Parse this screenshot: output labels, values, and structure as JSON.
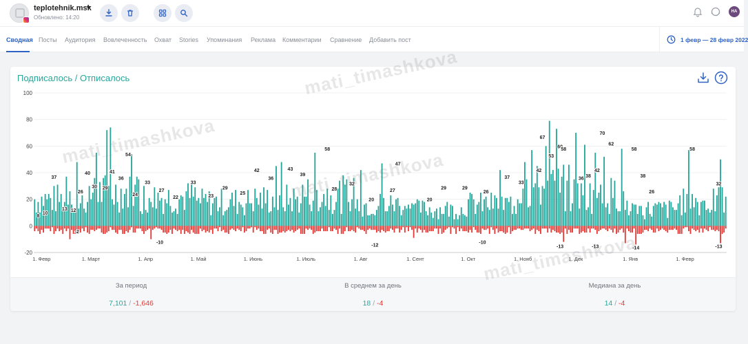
{
  "header": {
    "account_name": "teplotehnik.msk",
    "updated": "Обновлено: 14:20",
    "user_initials": "НА"
  },
  "tabs": [
    {
      "label": "Сводная",
      "active": true
    },
    {
      "label": "Посты"
    },
    {
      "label": "Аудитория"
    },
    {
      "label": "Вовлеченность"
    },
    {
      "label": "Охват"
    },
    {
      "label": "Stories"
    },
    {
      "label": "Упоминания"
    },
    {
      "label": "Реклама"
    },
    {
      "label": "Комментарии"
    },
    {
      "label": "Сравнение"
    },
    {
      "label": "Добавить пост"
    }
  ],
  "date_range": "1 февр — 28 февр 2022",
  "card": {
    "title": "Подписалось / Отписалось"
  },
  "stats": [
    {
      "label": "За период",
      "positive": "7,101",
      "negative": "-1,646"
    },
    {
      "label": "В среднем за день",
      "positive": "18",
      "negative": "-4"
    },
    {
      "label": "Медиана за день",
      "positive": "14",
      "negative": "-4"
    }
  ],
  "watermark": "mati_timashkova",
  "colors": {
    "accent": "#2f62c4",
    "subscribed": "#26a69a",
    "unsubscribed": "#e53935"
  },
  "chart_data": {
    "type": "bar",
    "title": "Подписалось / Отписалось",
    "ylim": [
      -20,
      100
    ],
    "yticks": [
      -20,
      0,
      20,
      40,
      60,
      80,
      100
    ],
    "x_range": [
      "2021-02-01",
      "2022-02-28"
    ],
    "month_ticks": [
      {
        "label": "1. Февр",
        "day": 0
      },
      {
        "label": "1. Март",
        "day": 28
      },
      {
        "label": "1. Апр",
        "day": 59
      },
      {
        "label": "1. Май",
        "day": 89
      },
      {
        "label": "1. Июнь",
        "day": 120
      },
      {
        "label": "1. Июль",
        "day": 150
      },
      {
        "label": "1. Авг",
        "day": 181
      },
      {
        "label": "1. Сент",
        "day": 212
      },
      {
        "label": "1. Окт",
        "day": 242
      },
      {
        "label": "1. Нояб",
        "day": 273
      },
      {
        "label": "1. Дек",
        "day": 303
      },
      {
        "label": "1. Янв",
        "day": 334
      },
      {
        "label": "1. Февр",
        "day": 365
      }
    ],
    "series": [
      {
        "color": "#26a69a",
        "monthly_typical": [
          22,
          28,
          24,
          20,
          22,
          26,
          18,
          14,
          18,
          32,
          26,
          14,
          20
        ],
        "peaks": [
          {
            "day": 18,
            "value": 37
          },
          {
            "day": 24,
            "value": 48
          },
          {
            "day": 35,
            "value": 55
          },
          {
            "day": 41,
            "value": 72
          },
          {
            "day": 43,
            "value": 74
          },
          {
            "day": 55,
            "value": 54
          },
          {
            "day": 137,
            "value": 45
          },
          {
            "day": 140,
            "value": 48
          },
          {
            "day": 159,
            "value": 55
          },
          {
            "day": 185,
            "value": 42
          },
          {
            "day": 197,
            "value": 47
          },
          {
            "day": 264,
            "value": 42
          },
          {
            "day": 278,
            "value": 48
          },
          {
            "day": 282,
            "value": 57
          },
          {
            "day": 290,
            "value": 60
          },
          {
            "day": 292,
            "value": 79
          },
          {
            "day": 296,
            "value": 73
          },
          {
            "day": 307,
            "value": 70
          },
          {
            "day": 312,
            "value": 61
          },
          {
            "day": 318,
            "value": 55
          },
          {
            "day": 323,
            "value": 52
          },
          {
            "day": 333,
            "value": 58
          },
          {
            "day": 371,
            "value": 57
          },
          {
            "day": 389,
            "value": 50
          }
        ]
      },
      {
        "color": "#e53935",
        "typical": -4,
        "troughs": [
          {
            "day": 20,
            "value": -10
          },
          {
            "day": 66,
            "value": -10
          },
          {
            "day": 215,
            "value": -9
          },
          {
            "day": 300,
            "value": -12
          },
          {
            "day": 335,
            "value": -13
          },
          {
            "day": 341,
            "value": -14
          },
          {
            "day": 389,
            "value": -13
          }
        ]
      }
    ],
    "bar_labels": [
      {
        "day": 2,
        "value": 8,
        "text": "8"
      },
      {
        "day": 6,
        "value": 10,
        "text": "10"
      },
      {
        "day": 11,
        "value": 37,
        "text": "37"
      },
      {
        "day": 17,
        "value": 13,
        "text": "13"
      },
      {
        "day": 22,
        "value": 12,
        "text": "12"
      },
      {
        "day": 26,
        "value": 26,
        "text": "26"
      },
      {
        "day": 30,
        "value": 40,
        "text": "40"
      },
      {
        "day": 34,
        "value": 30,
        "text": "30"
      },
      {
        "day": 40,
        "value": 29,
        "text": "29"
      },
      {
        "day": 44,
        "value": 41,
        "text": "41"
      },
      {
        "day": 49,
        "value": 36,
        "text": "36"
      },
      {
        "day": 53,
        "value": 54,
        "text": "54"
      },
      {
        "day": 57,
        "value": 24,
        "text": "24"
      },
      {
        "day": 64,
        "value": 33,
        "text": "33"
      },
      {
        "day": 72,
        "value": 27,
        "text": "27"
      },
      {
        "day": 80,
        "value": 22,
        "text": "22"
      },
      {
        "day": 90,
        "value": 33,
        "text": "33"
      },
      {
        "day": 100,
        "value": 23,
        "text": "23"
      },
      {
        "day": 108,
        "value": 29,
        "text": "29"
      },
      {
        "day": 118,
        "value": 25,
        "text": "25"
      },
      {
        "day": 126,
        "value": 42,
        "text": "42"
      },
      {
        "day": 134,
        "value": 36,
        "text": "36"
      },
      {
        "day": 145,
        "value": 43,
        "text": "43"
      },
      {
        "day": 152,
        "value": 39,
        "text": "39"
      },
      {
        "day": 166,
        "value": 58,
        "text": "58"
      },
      {
        "day": 170,
        "value": 28,
        "text": "28"
      },
      {
        "day": 180,
        "value": 32,
        "text": "32"
      },
      {
        "day": 191,
        "value": 20,
        "text": "20"
      },
      {
        "day": 203,
        "value": 27,
        "text": "27"
      },
      {
        "day": 206,
        "value": 47,
        "text": "47"
      },
      {
        "day": 224,
        "value": 20,
        "text": "20"
      },
      {
        "day": 232,
        "value": 29,
        "text": "29"
      },
      {
        "day": 244,
        "value": 29,
        "text": "29"
      },
      {
        "day": 256,
        "value": 26,
        "text": "26"
      },
      {
        "day": 268,
        "value": 37,
        "text": "37"
      },
      {
        "day": 276,
        "value": 33,
        "text": "33"
      },
      {
        "day": 286,
        "value": 42,
        "text": "42"
      },
      {
        "day": 288,
        "value": 67,
        "text": "67"
      },
      {
        "day": 293,
        "value": 53,
        "text": "53"
      },
      {
        "day": 298,
        "value": 60,
        "text": "60"
      },
      {
        "day": 300,
        "value": 58,
        "text": "58"
      },
      {
        "day": 310,
        "value": 36,
        "text": "36"
      },
      {
        "day": 314,
        "value": 38,
        "text": "38"
      },
      {
        "day": 319,
        "value": 42,
        "text": "42"
      },
      {
        "day": 322,
        "value": 70,
        "text": "70"
      },
      {
        "day": 327,
        "value": 62,
        "text": "62"
      },
      {
        "day": 340,
        "value": 58,
        "text": "58"
      },
      {
        "day": 345,
        "value": 38,
        "text": "38"
      },
      {
        "day": 350,
        "value": 26,
        "text": "26"
      },
      {
        "day": 373,
        "value": 58,
        "text": "58"
      },
      {
        "day": 388,
        "value": 32,
        "text": "32"
      },
      {
        "day": 24,
        "value": -2,
        "text": "-2"
      },
      {
        "day": 71,
        "value": -10,
        "text": "-10"
      },
      {
        "day": 193,
        "value": -12,
        "text": "-12"
      },
      {
        "day": 254,
        "value": -10,
        "text": "-10"
      },
      {
        "day": 298,
        "value": -13,
        "text": "-13"
      },
      {
        "day": 318,
        "value": -13,
        "text": "-13"
      },
      {
        "day": 341,
        "value": -14,
        "text": "-14"
      },
      {
        "day": 388,
        "value": -13,
        "text": "-13"
      }
    ]
  }
}
